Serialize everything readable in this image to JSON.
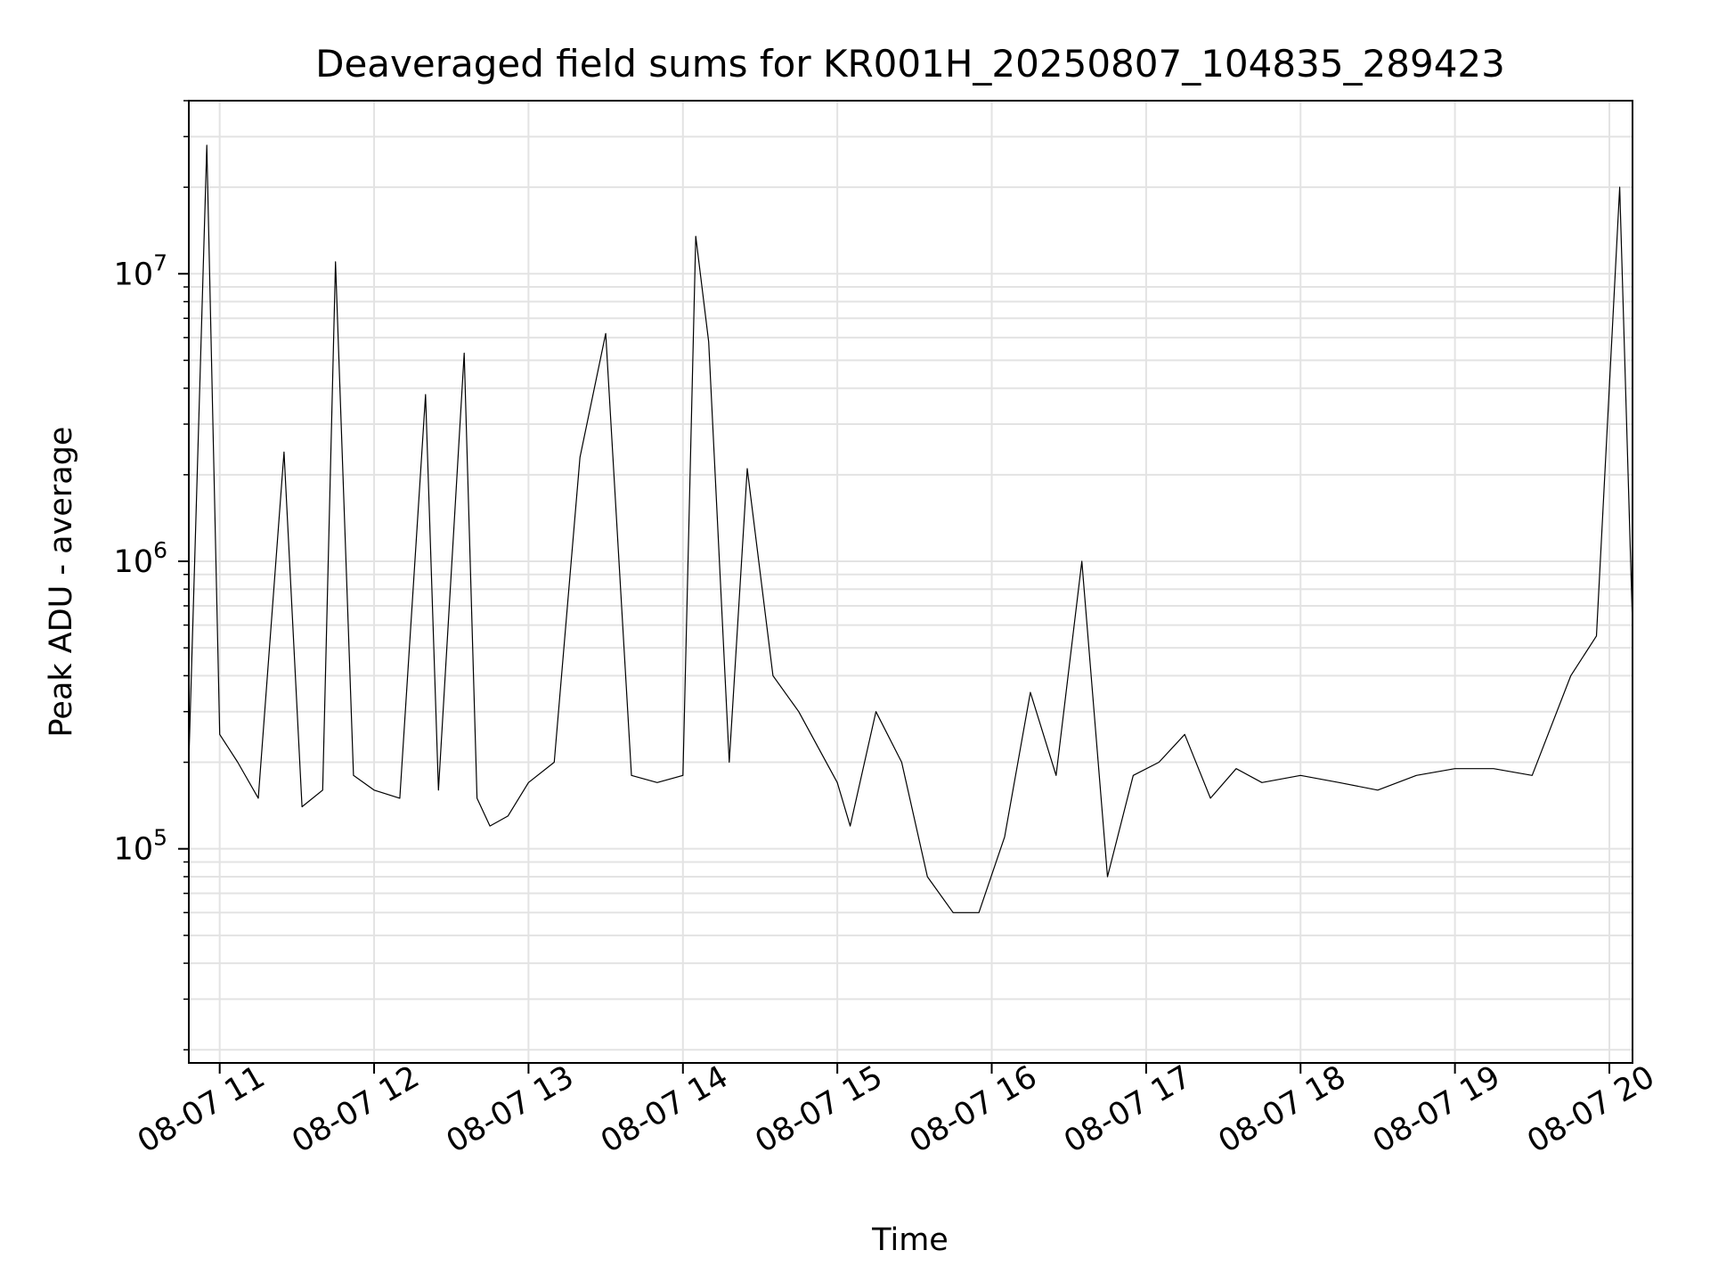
{
  "chart_data": {
    "type": "line",
    "title": "Deaveraged field sums for KR001H_20250807_104835_289423",
    "xlabel": "Time",
    "ylabel": "Peak ADU - average",
    "yscale": "log",
    "xlim": [
      "08-07 10:48",
      "08-07 20:09"
    ],
    "ylim": [
      18000,
      40000000
    ],
    "grid": true,
    "line_color": "#000000",
    "x_ticks": [
      "08-07 11",
      "08-07 12",
      "08-07 13",
      "08-07 14",
      "08-07 15",
      "08-07 16",
      "08-07 17",
      "08-07 18",
      "08-07 19",
      "08-07 20"
    ],
    "y_ticks": [
      {
        "value": 100000,
        "base": "10",
        "exp": "5"
      },
      {
        "value": 1000000,
        "base": "10",
        "exp": "6"
      },
      {
        "value": 10000000,
        "base": "10",
        "exp": "7"
      }
    ],
    "series": [
      {
        "x": [
          "08-07 10:48",
          "08-07 10:55",
          "08-07 11:00",
          "08-07 11:07",
          "08-07 11:15",
          "08-07 11:25",
          "08-07 11:32",
          "08-07 11:40",
          "08-07 11:45",
          "08-07 11:52",
          "08-07 12:00",
          "08-07 12:10",
          "08-07 12:20",
          "08-07 12:25",
          "08-07 12:35",
          "08-07 12:40",
          "08-07 12:45",
          "08-07 12:52",
          "08-07 13:00",
          "08-07 13:10",
          "08-07 13:20",
          "08-07 13:30",
          "08-07 13:40",
          "08-07 13:50",
          "08-07 14:00",
          "08-07 14:05",
          "08-07 14:10",
          "08-07 14:18",
          "08-07 14:25",
          "08-07 14:35",
          "08-07 14:45",
          "08-07 15:00",
          "08-07 15:05",
          "08-07 15:15",
          "08-07 15:25",
          "08-07 15:35",
          "08-07 15:45",
          "08-07 15:55",
          "08-07 16:05",
          "08-07 16:15",
          "08-07 16:25",
          "08-07 16:35",
          "08-07 16:45",
          "08-07 16:55",
          "08-07 17:05",
          "08-07 17:15",
          "08-07 17:25",
          "08-07 17:35",
          "08-07 17:45",
          "08-07 18:00",
          "08-07 18:15",
          "08-07 18:30",
          "08-07 18:45",
          "08-07 19:00",
          "08-07 19:15",
          "08-07 19:30",
          "08-07 19:45",
          "08-07 19:55",
          "08-07 20:04",
          "08-07 20:09"
        ],
        "y": [
          200000,
          28000000,
          250000,
          200000,
          150000,
          2400000,
          140000,
          160000,
          11000000,
          180000,
          160000,
          150000,
          3800000,
          160000,
          5300000,
          150000,
          120000,
          130000,
          170000,
          200000,
          2300000,
          6200000,
          180000,
          170000,
          180000,
          13500000,
          5800000,
          200000,
          2100000,
          400000,
          300000,
          170000,
          120000,
          300000,
          200000,
          80000,
          60000,
          60000,
          110000,
          350000,
          180000,
          1000000,
          80000,
          180000,
          200000,
          250000,
          150000,
          190000,
          170000,
          180000,
          170000,
          160000,
          180000,
          190000,
          190000,
          180000,
          400000,
          550000,
          20000000,
          600000
        ]
      }
    ]
  }
}
